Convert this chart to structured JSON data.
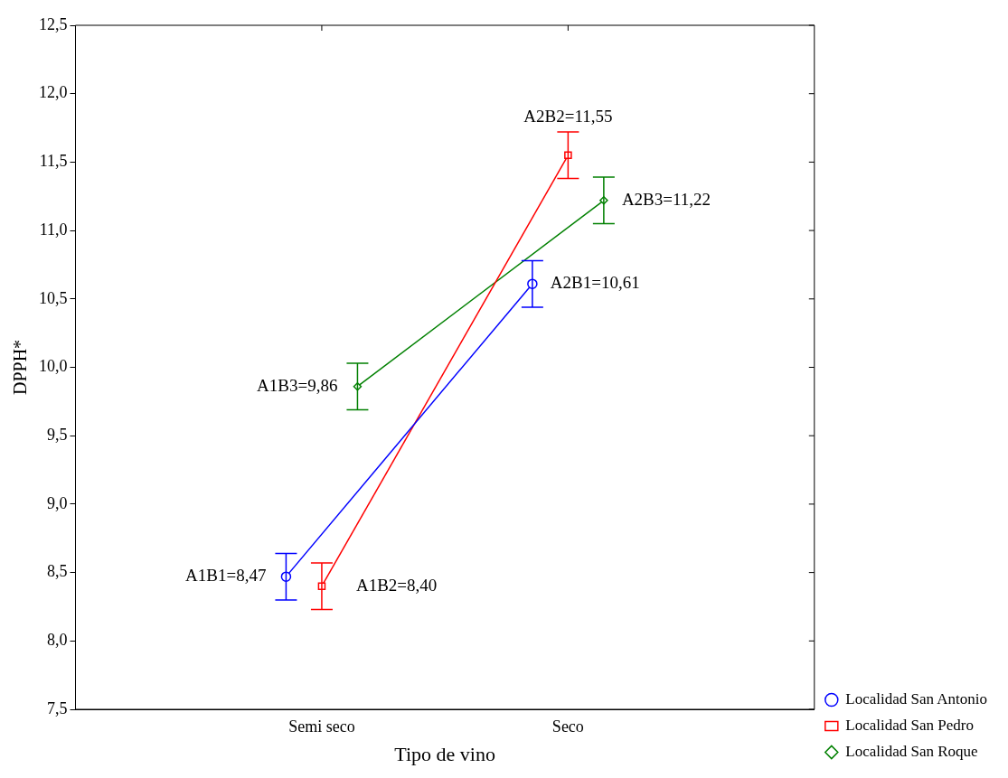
{
  "chart_data": {
    "type": "line",
    "xlabel": "Tipo de vino",
    "ylabel": "DPPH*",
    "categories": [
      "Semi seco",
      "Seco"
    ],
    "series": [
      {
        "name": "Localidad San Antonio",
        "color": "#0000ff",
        "values": [
          8.47,
          10.61
        ],
        "errors": [
          0.17,
          0.17
        ],
        "marker": "circle"
      },
      {
        "name": "Localidad San Pedro",
        "color": "#ff0000",
        "values": [
          8.4,
          11.55
        ],
        "errors": [
          0.17,
          0.17
        ],
        "marker": "square"
      },
      {
        "name": "Localidad San Roque",
        "color": "#008000",
        "values": [
          9.86,
          11.22
        ],
        "errors": [
          0.17,
          0.17
        ],
        "marker": "diamond"
      }
    ],
    "ylim": [
      7.5,
      12.5
    ],
    "yticks": [
      {
        "value": 7.5,
        "label": "7,5"
      },
      {
        "value": 8,
        "label": "8,0"
      },
      {
        "value": 8.5,
        "label": "8,5"
      },
      {
        "value": 9,
        "label": "9,0"
      },
      {
        "value": 9.5,
        "label": "9,5"
      },
      {
        "value": 10,
        "label": "10,0"
      },
      {
        "value": 10.5,
        "label": "10,5"
      },
      {
        "value": 11,
        "label": "11,0"
      },
      {
        "value": 11.5,
        "label": "11,5"
      },
      {
        "value": 12,
        "label": "12,0"
      },
      {
        "value": 12.5,
        "label": "12,5"
      }
    ],
    "grid": false,
    "legend": "bottom right",
    "annotations": [
      "A1B1=8,47",
      "A1B2=8,40",
      "A1B3=9,86",
      "A2B2=11,55",
      "A2B3=11,22",
      "A2B1=10,61"
    ]
  }
}
